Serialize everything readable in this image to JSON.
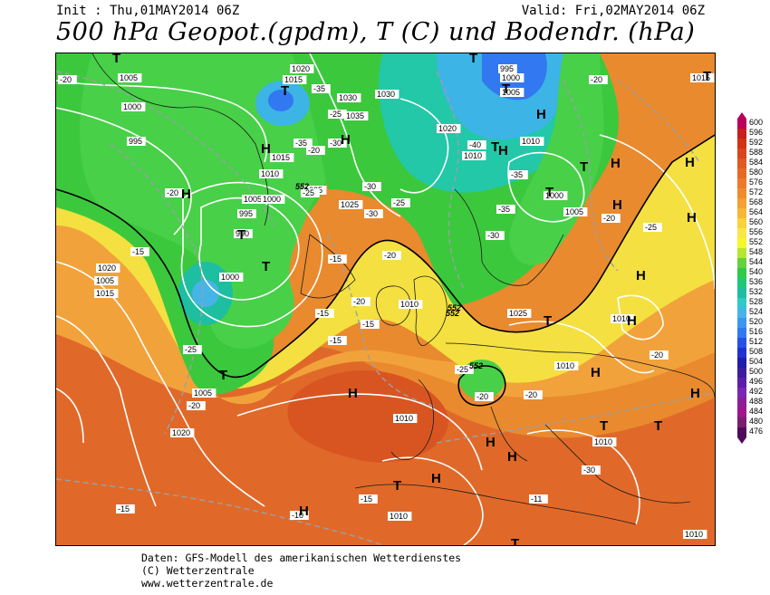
{
  "header": {
    "init": "Init : Thu,01MAY2014 06Z",
    "valid": "Valid: Fri,02MAY2014 06Z",
    "title": "500 hPa Geopot.(gpdm), T (C) und Bodendr. (hPa)"
  },
  "legend": {
    "levels": [
      600,
      596,
      592,
      588,
      584,
      580,
      576,
      572,
      568,
      564,
      560,
      556,
      552,
      548,
      544,
      540,
      536,
      532,
      528,
      524,
      520,
      516,
      512,
      508,
      504,
      500,
      496,
      492,
      488,
      484,
      480,
      476
    ],
    "colors": [
      "#b9005a",
      "#c81e1e",
      "#d03214",
      "#d8461e",
      "#e05a22",
      "#e66a26",
      "#ec7a2a",
      "#f08c2e",
      "#f4a032",
      "#f8b636",
      "#fad23a",
      "#fae646",
      "#f6f628",
      "#b4e632",
      "#64d23c",
      "#32c848",
      "#1ec878",
      "#1ebea0",
      "#32c8c8",
      "#46b4e6",
      "#3c96f0",
      "#3278f0",
      "#2850e6",
      "#1e32d2",
      "#1e1eaa",
      "#3c1ea0",
      "#5a1eaa",
      "#7828b4",
      "#8c1e96",
      "#a0148c",
      "#781e6e",
      "#500a5a"
    ]
  },
  "map_labels": {
    "pressure": [
      "1020",
      "1015",
      "1005",
      "1000",
      "995",
      "1030",
      "1030",
      "1035",
      "1020",
      "995",
      "1000",
      "1005",
      "1010",
      "1015",
      "1010",
      "1005",
      "1000",
      "995",
      "990",
      "1025",
      "1025",
      "1000",
      "1005",
      "1010",
      "1015",
      "1020",
      "1005",
      "1010",
      "1025",
      "1010",
      "1010",
      "1010",
      "1010",
      "1020",
      "1010",
      "1010",
      "1015",
      "1000",
      "1005"
    ],
    "temperature": [
      "-20",
      "-35",
      "-25",
      "-35",
      "-30",
      "-20",
      "-20",
      "-25",
      "-30",
      "-30",
      "-25",
      "-40",
      "-35",
      "-35",
      "-30",
      "-20",
      "-25",
      "-20",
      "-20",
      "-15",
      "-15",
      "-15",
      "-15",
      "-20",
      "-20",
      "-25",
      "-20",
      "-15",
      "-15",
      "-10",
      "-15",
      "-11",
      "-30",
      "-20",
      "-25",
      "-20"
    ],
    "geopotential": [
      "552",
      "552",
      "552",
      "552"
    ],
    "highs_lows": [
      "H",
      "H",
      "H",
      "H",
      "H",
      "H",
      "H",
      "H",
      "H",
      "H",
      "H",
      "H",
      "H",
      "H",
      "H",
      "H",
      "H",
      "H",
      "T",
      "T",
      "T",
      "T",
      "T",
      "T",
      "T",
      "T",
      "T",
      "T",
      "T",
      "T",
      "T",
      "T",
      "T",
      "T"
    ]
  },
  "footer": {
    "line1": "Daten: GFS-Modell des amerikanischen Wetterdienstes",
    "line2": "(C) Wetterzentrale",
    "line3": "www.wetterzentrale.de"
  }
}
